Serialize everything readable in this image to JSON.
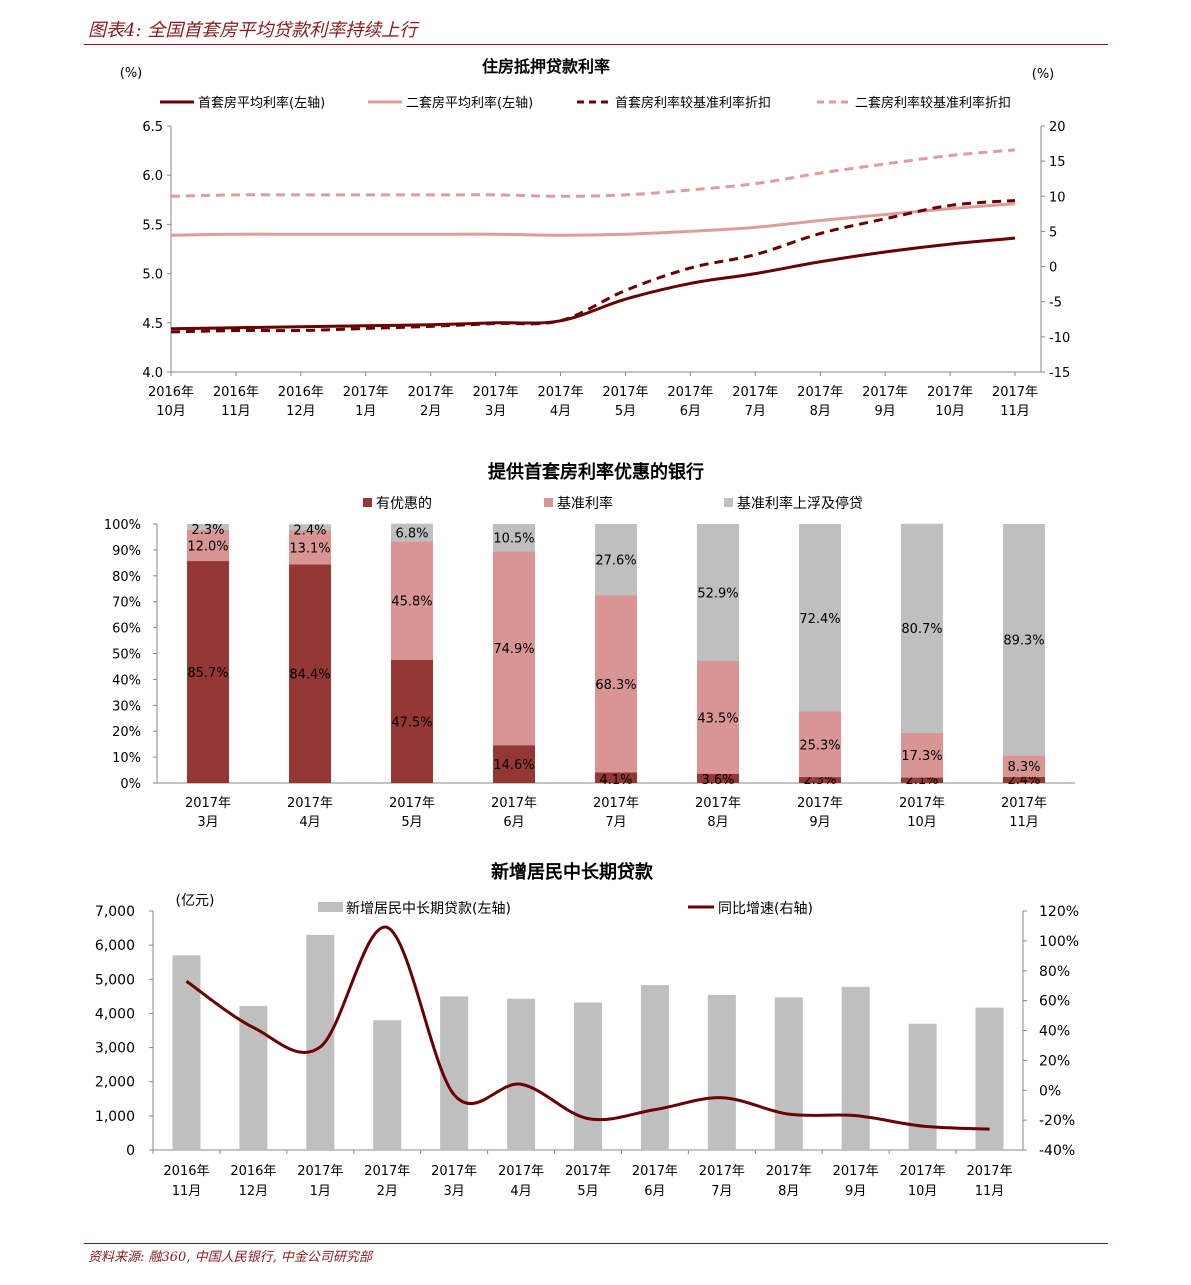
{
  "header": {
    "title": "图表4: 全国首套房平均贷款利率持续上行"
  },
  "footer": {
    "source": "资料来源: 融360, 中国人民银行, 中金公司研究部"
  },
  "colors": {
    "dark": "#6b0000",
    "pink": "#e09c9c",
    "bar_red": "#953735",
    "bar_pink": "#d99594",
    "bar_gray": "#bfbfbf"
  },
  "chart_data": [
    {
      "type": "line",
      "title": "住房抵押贷款利率",
      "ylabel_left": "(%)",
      "ylabel_right": "(%)",
      "categories": [
        [
          "2016年",
          "10月"
        ],
        [
          "2016年",
          "11月"
        ],
        [
          "2016年",
          "12月"
        ],
        [
          "2017年",
          "1月"
        ],
        [
          "2017年",
          "2月"
        ],
        [
          "2017年",
          "3月"
        ],
        [
          "2017年",
          "4月"
        ],
        [
          "2017年",
          "5月"
        ],
        [
          "2017年",
          "6月"
        ],
        [
          "2017年",
          "7月"
        ],
        [
          "2017年",
          "8月"
        ],
        [
          "2017年",
          "9月"
        ],
        [
          "2017年",
          "10月"
        ],
        [
          "2017年",
          "11月"
        ]
      ],
      "ylim_left": [
        4.0,
        6.5
      ],
      "yticks_left": [
        "4.0",
        "4.5",
        "5.0",
        "5.5",
        "6.0",
        "6.5"
      ],
      "ylim_right": [
        -15,
        20
      ],
      "yticks_right": [
        "-15",
        "-10",
        "-5",
        "0",
        "5",
        "10",
        "15",
        "20"
      ],
      "series": [
        {
          "name": "首套房平均利率(左轴)",
          "axis": "left",
          "style": "solid",
          "color": "#6b0000",
          "values": [
            4.44,
            4.45,
            4.46,
            4.47,
            4.48,
            4.5,
            4.52,
            4.74,
            4.9,
            5.0,
            5.12,
            5.22,
            5.3,
            5.36
          ]
        },
        {
          "name": "二套房平均利率(左轴)",
          "axis": "left",
          "style": "solid",
          "color": "#e09c9c",
          "values": [
            5.39,
            5.4,
            5.4,
            5.4,
            5.4,
            5.4,
            5.39,
            5.4,
            5.43,
            5.47,
            5.54,
            5.6,
            5.66,
            5.71
          ]
        },
        {
          "name": "首套房利率较基准利率折扣",
          "axis": "right",
          "style": "dash",
          "color": "#6b0000",
          "values": [
            -9.3,
            -9.1,
            -9.1,
            -8.8,
            -8.5,
            -8.1,
            -7.7,
            -3.4,
            -0.2,
            1.7,
            4.7,
            6.8,
            8.7,
            9.4
          ]
        },
        {
          "name": "二套房利率较基准利率折扣",
          "axis": "right",
          "style": "dash",
          "color": "#e09c9c",
          "values": [
            10.0,
            10.2,
            10.2,
            10.2,
            10.2,
            10.2,
            10.0,
            10.2,
            10.9,
            11.8,
            13.3,
            14.6,
            15.8,
            16.6
          ]
        }
      ]
    },
    {
      "type": "bar",
      "stacked": true,
      "title": "提供首套房利率优惠的银行",
      "categories": [
        [
          "2017年",
          "3月"
        ],
        [
          "2017年",
          "4月"
        ],
        [
          "2017年",
          "5月"
        ],
        [
          "2017年",
          "6月"
        ],
        [
          "2017年",
          "7月"
        ],
        [
          "2017年",
          "8月"
        ],
        [
          "2017年",
          "9月"
        ],
        [
          "2017年",
          "10月"
        ],
        [
          "2017年",
          "11月"
        ]
      ],
      "ylim": [
        0,
        100
      ],
      "yticks": [
        "0%",
        "10%",
        "20%",
        "30%",
        "40%",
        "50%",
        "60%",
        "70%",
        "80%",
        "90%",
        "100%"
      ],
      "series": [
        {
          "name": "有优惠的",
          "color": "#953735",
          "values": [
            85.7,
            84.4,
            47.5,
            14.6,
            4.1,
            3.6,
            2.3,
            2.1,
            2.4
          ]
        },
        {
          "name": "基准利率",
          "color": "#d99594",
          "values": [
            12.0,
            13.1,
            45.8,
            74.9,
            68.3,
            43.5,
            25.3,
            17.3,
            8.3
          ]
        },
        {
          "name": "基准利率上浮及停贷",
          "color": "#bfbfbf",
          "values": [
            2.3,
            2.4,
            6.8,
            10.5,
            27.6,
            52.9,
            72.4,
            80.7,
            89.3
          ]
        }
      ]
    },
    {
      "type": "bar+line",
      "title": "新增居民中长期贷款",
      "ylabel_left": "(亿元)",
      "categories": [
        [
          "2016年",
          "11月"
        ],
        [
          "2016年",
          "12月"
        ],
        [
          "2017年",
          "1月"
        ],
        [
          "2017年",
          "2月"
        ],
        [
          "2017年",
          "3月"
        ],
        [
          "2017年",
          "4月"
        ],
        [
          "2017年",
          "5月"
        ],
        [
          "2017年",
          "6月"
        ],
        [
          "2017年",
          "7月"
        ],
        [
          "2017年",
          "8月"
        ],
        [
          "2017年",
          "9月"
        ],
        [
          "2017年",
          "10月"
        ],
        [
          "2017年",
          "11月"
        ]
      ],
      "ylim_left": [
        0,
        7000
      ],
      "yticks_left": [
        "0",
        "1,000",
        "2,000",
        "3,000",
        "4,000",
        "5,000",
        "6,000",
        "7,000"
      ],
      "ylim_right": [
        -40,
        120
      ],
      "yticks_right": [
        "-40%",
        "-20%",
        "0%",
        "20%",
        "40%",
        "60%",
        "80%",
        "100%",
        "120%"
      ],
      "series": [
        {
          "name": "新增居民中长期贷款(左轴)",
          "type": "bar",
          "color": "#bfbfbf",
          "values": [
            5700,
            4220,
            6300,
            3800,
            4500,
            4430,
            4320,
            4830,
            4540,
            4470,
            4780,
            3700,
            4170
          ]
        },
        {
          "name": "同比增速(右轴)",
          "type": "line",
          "color": "#6b0000",
          "values": [
            73,
            42,
            29,
            109,
            -3,
            4,
            -19,
            -13,
            -5,
            -16,
            -17,
            -24,
            -26
          ]
        }
      ]
    }
  ]
}
